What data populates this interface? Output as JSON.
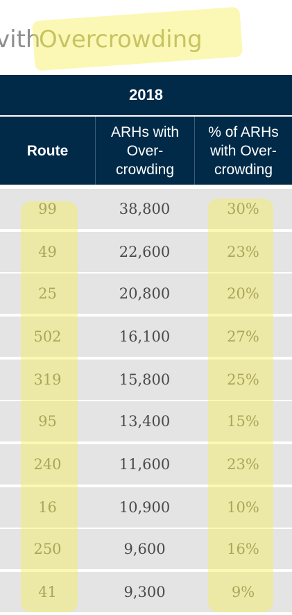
{
  "title": {
    "lead": "vith",
    "highlight": "Overcrowding"
  },
  "table": {
    "year": "2018",
    "headers": {
      "route": "Route",
      "arh_lines": [
        "ARHs with",
        "Over-",
        "crowding"
      ],
      "pct_lines": [
        "% of ARHs",
        "with Over-",
        "crowding"
      ]
    },
    "rows": [
      {
        "route": "99",
        "arhs": "38,800",
        "pct": "30%"
      },
      {
        "route": "49",
        "arhs": "22,600",
        "pct": "23%"
      },
      {
        "route": "25",
        "arhs": "20,800",
        "pct": "20%"
      },
      {
        "route": "502",
        "arhs": "16,100",
        "pct": "27%"
      },
      {
        "route": "319",
        "arhs": "15,800",
        "pct": "25%"
      },
      {
        "route": "95",
        "arhs": "13,400",
        "pct": "15%"
      },
      {
        "route": "240",
        "arhs": "11,600",
        "pct": "23%"
      },
      {
        "route": "16",
        "arhs": "10,900",
        "pct": "10%"
      },
      {
        "route": "250",
        "arhs": "9,600",
        "pct": "16%"
      },
      {
        "route": "41",
        "arhs": "9,300",
        "pct": "9%"
      }
    ]
  },
  "colors": {
    "header_bg": "#002a48",
    "row_bg": "#e4e4e4",
    "highlighter": "#f7f05a"
  }
}
